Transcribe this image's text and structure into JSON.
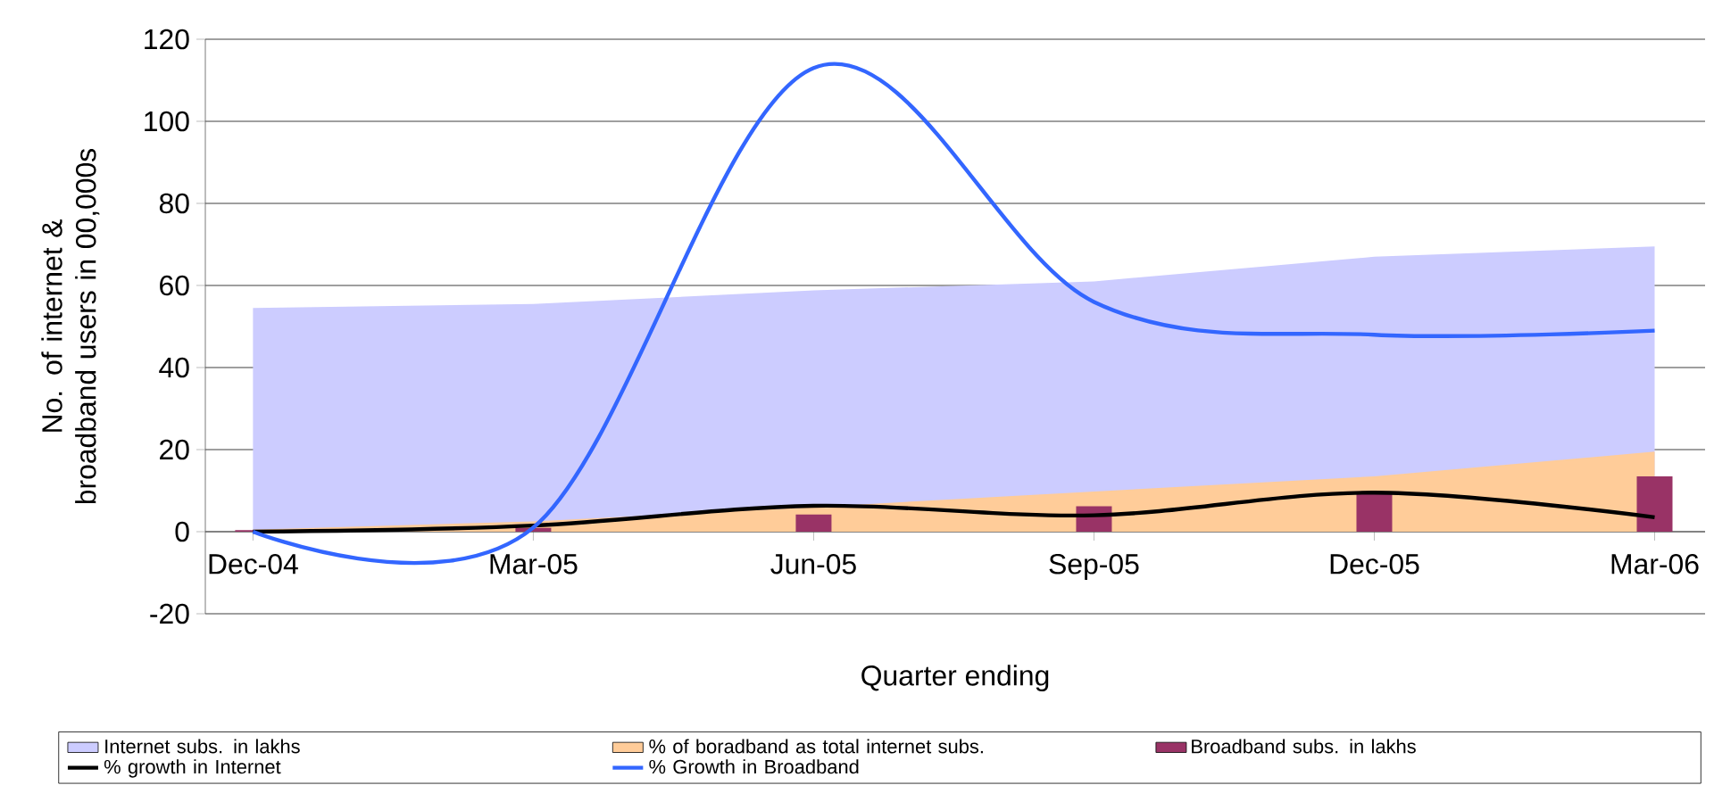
{
  "chart_data": {
    "type": "line",
    "xlabel": "Quarter ending",
    "ylabel": "No. of internet & broadband users in 00,000s",
    "categories": [
      "Dec-04",
      "Mar-05",
      "Jun-05",
      "Sep-05",
      "Dec-05",
      "Mar-06"
    ],
    "series": [
      {
        "name": "Internet subs. in lakhs",
        "type": "area",
        "color": "#ccccff",
        "values": [
          54.5,
          55.5,
          58.8,
          61,
          67,
          69.5
        ]
      },
      {
        "name": "% of boradband as total internet subs.",
        "type": "area",
        "color": "#ffcc99",
        "values": [
          0.5,
          2.5,
          6,
          9.8,
          13.5,
          19.5
        ]
      },
      {
        "name": "Broadband subs. in lakhs",
        "type": "bar",
        "color": "#993366",
        "values": [
          0.4,
          0.9,
          4.2,
          6.2,
          9.5,
          13.5
        ]
      },
      {
        "name": "% growth in Internet",
        "color": "#000000",
        "values": [
          0,
          1.5,
          6.3,
          4,
          9.5,
          3.5
        ]
      },
      {
        "name": "% Growth in Broadband",
        "color": "#3366ff",
        "values": [
          0,
          1,
          113,
          56,
          48,
          49
        ]
      }
    ],
    "ylim": [
      -20,
      120
    ],
    "yticks": [
      -20,
      0,
      20,
      40,
      60,
      80,
      100,
      120
    ],
    "grid": "y",
    "legend": "bottom",
    "marker": "none",
    "line_style": "solid"
  }
}
